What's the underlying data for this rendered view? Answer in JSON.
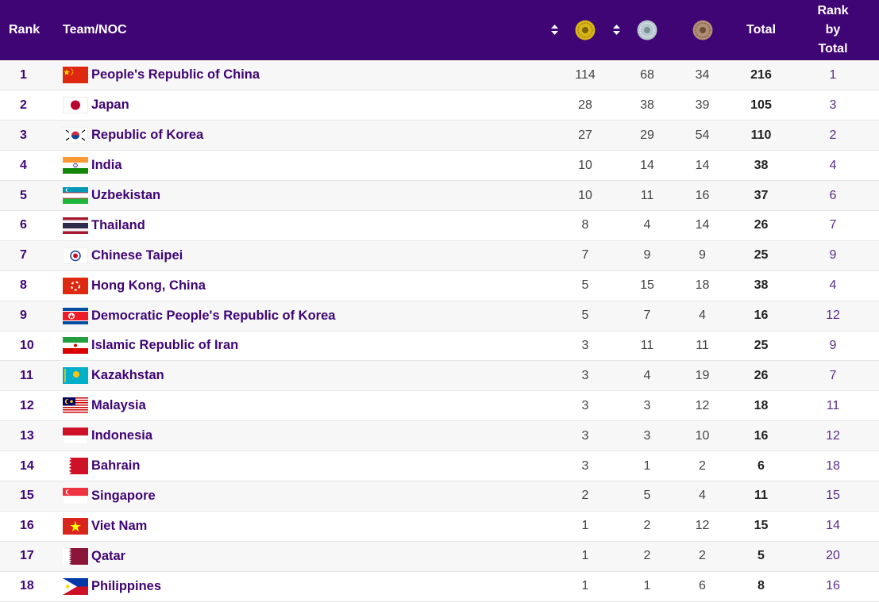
{
  "header": {
    "rank": "Rank",
    "team": "Team/NOC",
    "total": "Total",
    "rank_by_total_lines": [
      "Rank",
      "by",
      "Total"
    ],
    "medal_icons": [
      "gold-medal-icon",
      "silver-medal-icon",
      "bronze-medal-icon"
    ]
  },
  "colors": {
    "header_bg": "#3f0575",
    "team_text": "#3f0575",
    "row_alt": "#f7f7f7"
  },
  "rows": [
    {
      "rank": "1",
      "flag": "china-flag-icon",
      "team": "People's Republic of China",
      "gold": "114",
      "silver": "68",
      "bronze": "34",
      "total": "216",
      "rank_by_total": "1"
    },
    {
      "rank": "2",
      "flag": "japan-flag-icon",
      "team": "Japan",
      "gold": "28",
      "silver": "38",
      "bronze": "39",
      "total": "105",
      "rank_by_total": "3"
    },
    {
      "rank": "3",
      "flag": "korea-flag-icon",
      "team": "Republic of Korea",
      "gold": "27",
      "silver": "29",
      "bronze": "54",
      "total": "110",
      "rank_by_total": "2"
    },
    {
      "rank": "4",
      "flag": "india-flag-icon",
      "team": "India",
      "gold": "10",
      "silver": "14",
      "bronze": "14",
      "total": "38",
      "rank_by_total": "4"
    },
    {
      "rank": "5",
      "flag": "uzbekistan-flag-icon",
      "team": "Uzbekistan",
      "gold": "10",
      "silver": "11",
      "bronze": "16",
      "total": "37",
      "rank_by_total": "6"
    },
    {
      "rank": "6",
      "flag": "thailand-flag-icon",
      "team": "Thailand",
      "gold": "8",
      "silver": "4",
      "bronze": "14",
      "total": "26",
      "rank_by_total": "7"
    },
    {
      "rank": "7",
      "flag": "chinese-taipei-flag-icon",
      "team": "Chinese Taipei",
      "gold": "7",
      "silver": "9",
      "bronze": "9",
      "total": "25",
      "rank_by_total": "9"
    },
    {
      "rank": "8",
      "flag": "hong-kong-flag-icon",
      "team": "Hong Kong, China",
      "gold": "5",
      "silver": "15",
      "bronze": "18",
      "total": "38",
      "rank_by_total": "4"
    },
    {
      "rank": "9",
      "flag": "dprk-flag-icon",
      "team": "Democratic People's Republic of Korea",
      "gold": "5",
      "silver": "7",
      "bronze": "4",
      "total": "16",
      "rank_by_total": "12"
    },
    {
      "rank": "10",
      "flag": "iran-flag-icon",
      "team": "Islamic Republic of Iran",
      "gold": "3",
      "silver": "11",
      "bronze": "11",
      "total": "25",
      "rank_by_total": "9"
    },
    {
      "rank": "11",
      "flag": "kazakhstan-flag-icon",
      "team": "Kazakhstan",
      "gold": "3",
      "silver": "4",
      "bronze": "19",
      "total": "26",
      "rank_by_total": "7"
    },
    {
      "rank": "12",
      "flag": "malaysia-flag-icon",
      "team": "Malaysia",
      "gold": "3",
      "silver": "3",
      "bronze": "12",
      "total": "18",
      "rank_by_total": "11"
    },
    {
      "rank": "13",
      "flag": "indonesia-flag-icon",
      "team": "Indonesia",
      "gold": "3",
      "silver": "3",
      "bronze": "10",
      "total": "16",
      "rank_by_total": "12"
    },
    {
      "rank": "14",
      "flag": "bahrain-flag-icon",
      "team": "Bahrain",
      "gold": "3",
      "silver": "1",
      "bronze": "2",
      "total": "6",
      "rank_by_total": "18"
    },
    {
      "rank": "15",
      "flag": "singapore-flag-icon",
      "team": "Singapore",
      "gold": "2",
      "silver": "5",
      "bronze": "4",
      "total": "11",
      "rank_by_total": "15"
    },
    {
      "rank": "16",
      "flag": "vietnam-flag-icon",
      "team": "Viet Nam",
      "gold": "1",
      "silver": "2",
      "bronze": "12",
      "total": "15",
      "rank_by_total": "14"
    },
    {
      "rank": "17",
      "flag": "qatar-flag-icon",
      "team": "Qatar",
      "gold": "1",
      "silver": "2",
      "bronze": "2",
      "total": "5",
      "rank_by_total": "20"
    },
    {
      "rank": "18",
      "flag": "philippines-flag-icon",
      "team": "Philippines",
      "gold": "1",
      "silver": "1",
      "bronze": "6",
      "total": "8",
      "rank_by_total": "16"
    }
  ]
}
